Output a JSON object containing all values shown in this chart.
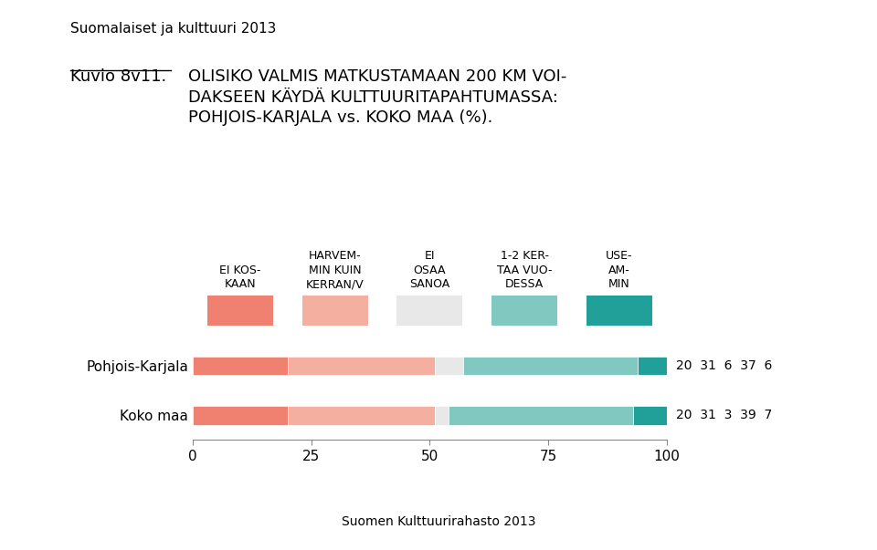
{
  "title_small": "Suomalaiset ja kulttuuri 2013",
  "title_label": "Kuvio 8v11.",
  "title_main": "OLISIKO VALMIS MATKUSTAMAAN 200 KM VOI-\nDAKSEEN KÄYDÄ KULTTUURITAPAHTUMASSA:\nPOHJOIS-KARJALA vs. KOKO MAA (%).",
  "footer": "Suomen Kulttuurirahasto 2013",
  "categories": [
    "EI KOS-\nKAAN",
    "HARVEM-\nMIN KUIN\nKERRAN/V",
    "EI\nOSAA\nSANOA",
    "1-2 KER-\nTAA VUO-\nDESSA",
    "USE-\nAM-\nMIN"
  ],
  "colors": [
    "#F08070",
    "#F4AFA0",
    "#E8E8E8",
    "#80C8C0",
    "#20A098"
  ],
  "rows": [
    {
      "label": "Pohjois-Karjala",
      "values": [
        20,
        31,
        6,
        37,
        6
      ]
    },
    {
      "label": "Koko maa",
      "values": [
        20,
        31,
        3,
        39,
        7
      ]
    }
  ],
  "xlim": [
    0,
    100
  ],
  "xticks": [
    0,
    25,
    50,
    75,
    100
  ],
  "background_color": "#FFFFFF"
}
